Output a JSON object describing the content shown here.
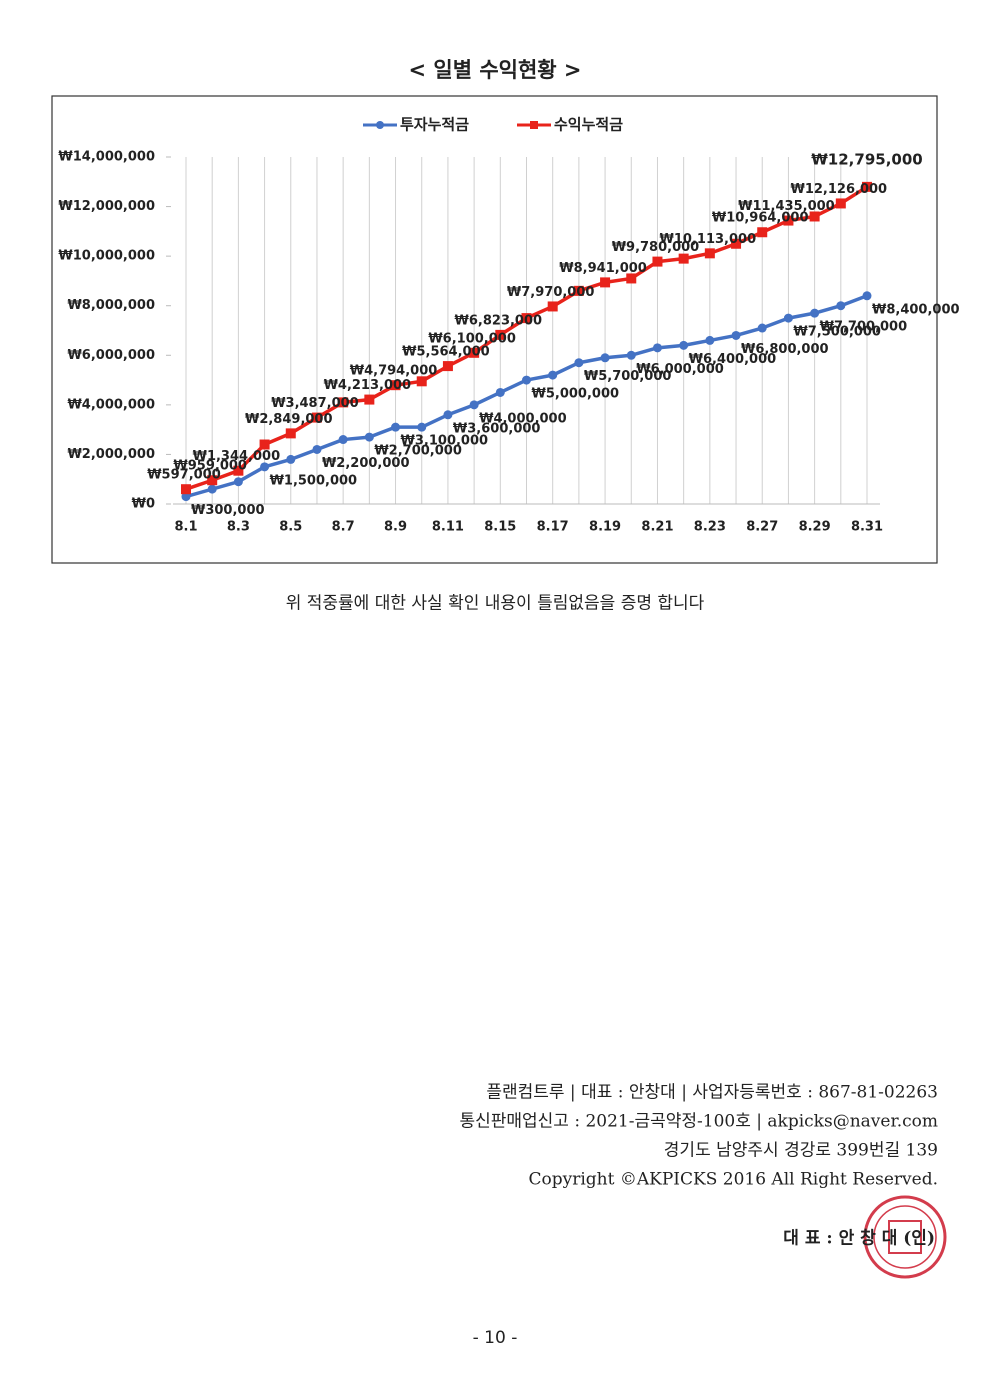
{
  "title": "< 일별 수익현황 >",
  "chart_data": {
    "type": "line",
    "categories": [
      "8.1",
      null,
      "8.3",
      null,
      "8.5",
      null,
      "8.7",
      null,
      "8.9",
      null,
      "8.11",
      null,
      "8.15",
      null,
      "8.17",
      null,
      "8.19",
      null,
      "8.21",
      null,
      "8.23",
      null,
      "8.27",
      null,
      "8.29",
      null,
      "8.31"
    ],
    "series": [
      {
        "name": "투자누적금",
        "color": "#4472c4",
        "marker": "circle",
        "values": [
          300000,
          600000,
          900000,
          1500000,
          1800000,
          2200000,
          2600000,
          2700000,
          3100000,
          3100000,
          3600000,
          4000000,
          4500000,
          5000000,
          5200000,
          5700000,
          5900000,
          6000000,
          6300000,
          6400000,
          6600000,
          6800000,
          7100000,
          7500000,
          7700000,
          8000000,
          8400000
        ],
        "value_labels": [
          "₩300,000",
          null,
          null,
          "₩1,500,000",
          null,
          "₩2,200,000",
          null,
          "₩2,700,000",
          "₩3,100,000",
          null,
          "₩3,600,000",
          "₩4,000,000",
          null,
          "₩5,000,000",
          null,
          "₩5,700,000",
          null,
          "₩6,000,000",
          null,
          "₩6,400,000",
          null,
          "₩6,800,000",
          null,
          "₩7,500,000",
          "₩7,700,000",
          null,
          "₩8,400,000"
        ]
      },
      {
        "name": "수익누적금",
        "color": "#e8231b",
        "marker": "square",
        "values": [
          597000,
          959000,
          1344000,
          2400000,
          2849000,
          3487000,
          4100000,
          4213000,
          4794000,
          4950000,
          5564000,
          6100000,
          6823000,
          7500000,
          7970000,
          8600000,
          8941000,
          9100000,
          9780000,
          9900000,
          10113000,
          10500000,
          10964000,
          11435000,
          11600000,
          12126000,
          12795000
        ],
        "value_labels": [
          "₩597,000",
          "₩959,000",
          "₩1,344,000",
          null,
          "₩2,849,000",
          "₩3,487,000",
          null,
          "₩4,213,000",
          "₩4,794,000",
          null,
          "₩5,564,000",
          "₩6,100,000",
          "₩6,823,000",
          null,
          "₩7,970,000",
          null,
          "₩8,941,000",
          null,
          "₩9,780,000",
          null,
          "₩10,113,000",
          null,
          "₩10,964,000",
          "₩11,435,000",
          null,
          "₩12,126,000",
          "₩12,795,000"
        ]
      }
    ],
    "ylim": [
      0,
      14000000
    ],
    "yticks": [
      {
        "value": 0,
        "label": "₩0"
      },
      {
        "value": 2000000,
        "label": "₩2,000,000"
      },
      {
        "value": 4000000,
        "label": "₩4,000,000"
      },
      {
        "value": 6000000,
        "label": "₩6,000,000"
      },
      {
        "value": 8000000,
        "label": "₩8,000,000"
      },
      {
        "value": 10000000,
        "label": "₩10,000,000"
      },
      {
        "value": 12000000,
        "label": "₩12,000,000"
      },
      {
        "value": 14000000,
        "label": "₩14,000,000"
      }
    ],
    "grid": "vertical",
    "legend": "top"
  },
  "statement": "위 적중률에 대한 사실 확인 내용이 틀림없음을 증명 합니다",
  "footer": {
    "lines": [
      "플랜컴트루 | 대표 : 안창대 | 사업자등록번호 : 867-81-02263",
      "통신판매업신고 : 2021-금곡약정-100호 | akpicks@naver.com",
      "경기도 남양주시 경강로 399번길 139",
      "Copyright ©AKPICKS 2016 All Right Reserved."
    ],
    "signature": "대 표 : 안 창 대 (인)"
  },
  "page_number": "- 10 -"
}
